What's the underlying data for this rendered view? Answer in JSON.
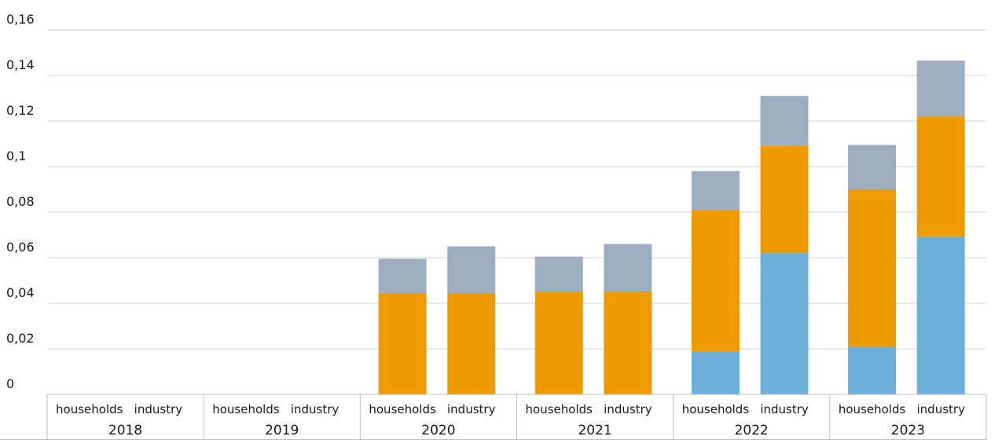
{
  "chart_data": {
    "type": "bar",
    "stacked": true,
    "groups": [
      "2018",
      "2019",
      "2020",
      "2021",
      "2022",
      "2023"
    ],
    "categories": [
      "households",
      "industry"
    ],
    "ylim": [
      0,
      0.16
    ],
    "yticks": [
      "0",
      "0,02",
      "0,04",
      "0,06",
      "0,08",
      "0,1",
      "0,12",
      "0,14",
      "0,16"
    ],
    "grid": true,
    "legend": "none",
    "series": [
      {
        "color": "#6cb0da",
        "values": {
          "2018": [
            0,
            0
          ],
          "2019": [
            0,
            0
          ],
          "2020": [
            0,
            0
          ],
          "2021": [
            0,
            0
          ],
          "2022": [
            0.019,
            0.062
          ],
          "2023": [
            0.021,
            0.069
          ]
        }
      },
      {
        "color": "#ed9b00",
        "values": {
          "2018": [
            0,
            0
          ],
          "2019": [
            0,
            0
          ],
          "2020": [
            0.0445,
            0.0445
          ],
          "2021": [
            0.045,
            0.045
          ],
          "2022": [
            0.062,
            0.047
          ],
          "2023": [
            0.069,
            0.053
          ]
        }
      },
      {
        "color": "#9caec0",
        "values": {
          "2018": [
            0,
            0
          ],
          "2019": [
            0,
            0
          ],
          "2020": [
            0.015,
            0.0205
          ],
          "2021": [
            0.0155,
            0.021
          ],
          "2022": [
            0.017,
            0.022
          ],
          "2023": [
            0.0195,
            0.0245
          ]
        }
      }
    ]
  }
}
